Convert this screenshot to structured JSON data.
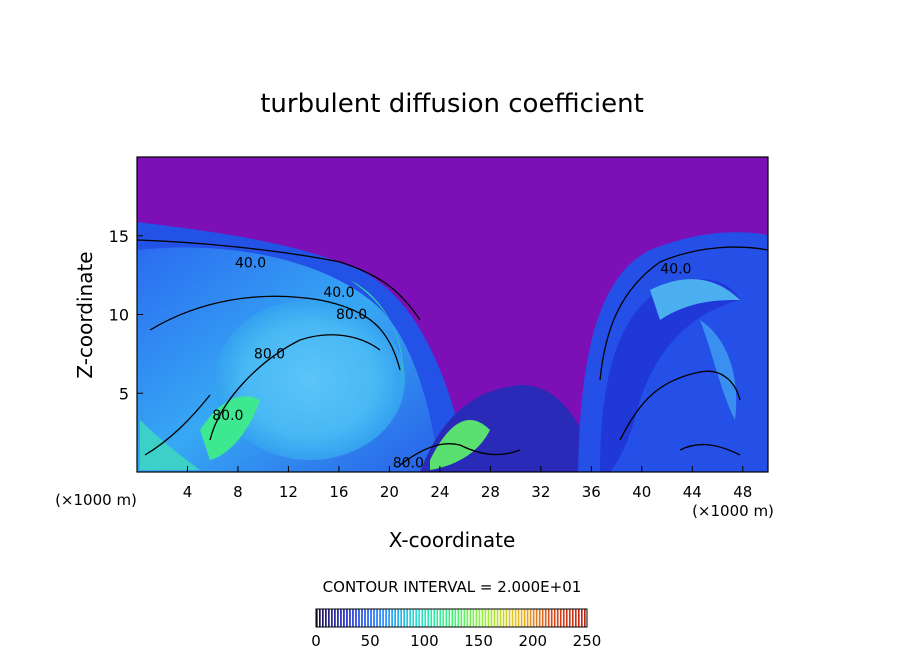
{
  "chart_data": {
    "type": "heatmap",
    "title": "turbulent diffusion coefficient",
    "xlabel": "X-coordinate",
    "ylabel": "Z-coordinate",
    "x_unit": "(×1000 m)",
    "x_unit_right": "(×1000 m)",
    "xlim": [
      0,
      50
    ],
    "ylim": [
      0,
      20
    ],
    "xticks": [
      "4",
      "8",
      "12",
      "16",
      "20",
      "24",
      "28",
      "32",
      "36",
      "40",
      "44",
      "48"
    ],
    "yticks": [
      "5",
      "10",
      "15"
    ],
    "contour_interval_text": "CONTOUR INTERVAL = 2.000E+01",
    "contour_interval": 20,
    "contour_labels": [
      {
        "text": "40.0",
        "x": 9,
        "z": 13
      },
      {
        "text": "40.0",
        "x": 16,
        "z": 11.1
      },
      {
        "text": "80.0",
        "x": 17,
        "z": 9.7
      },
      {
        "text": "80.0",
        "x": 10.5,
        "z": 7.2
      },
      {
        "text": "80.0",
        "x": 7.2,
        "z": 3.3
      },
      {
        "text": "80.0",
        "x": 21.5,
        "z": 0.3
      },
      {
        "text": "40.0",
        "x": 42.7,
        "z": 12.6
      }
    ],
    "colorbar": {
      "ticks": [
        "0",
        "50",
        "100",
        "150",
        "200",
        "250"
      ],
      "range": [
        0,
        250
      ],
      "colors": [
        "#1a0a4a",
        "#1f2fd8",
        "#1f8cff",
        "#25e0d0",
        "#3cf07a",
        "#9af03a",
        "#e8c020",
        "#d84a1a",
        "#c02010"
      ]
    },
    "background_color": "#7c0fb5"
  }
}
